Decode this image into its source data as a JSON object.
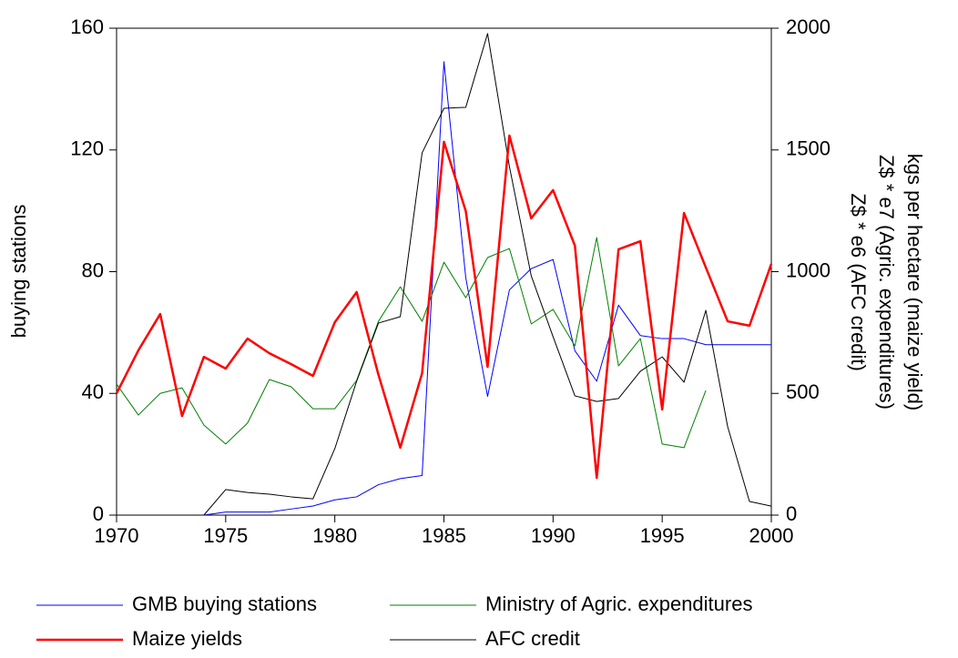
{
  "chart_data": {
    "type": "line",
    "y_label": "buying stations",
    "y2_label": [
      "kgs per hectare (maize yield)",
      "Z$ * e7 (Agric. expenditures)",
      "Z$ * e6 (AFC credit)"
    ],
    "x": [
      1970,
      1971,
      1972,
      1973,
      1974,
      1975,
      1976,
      1977,
      1978,
      1979,
      1980,
      1981,
      1982,
      1983,
      1984,
      1985,
      1986,
      1987,
      1988,
      1989,
      1990,
      1991,
      1992,
      1993,
      1994,
      1995,
      1996,
      1997,
      1998,
      1999,
      2000
    ],
    "xlim": [
      1970,
      2000
    ],
    "xticks": [
      1970,
      1975,
      1980,
      1985,
      1990,
      1995,
      2000
    ],
    "ylim": [
      0,
      160
    ],
    "yticks": [
      0,
      40,
      80,
      120,
      160
    ],
    "y2lim": [
      0,
      2000
    ],
    "y2ticks": [
      0,
      500,
      1000,
      1500,
      2000
    ],
    "series": [
      {
        "name": "GMB buying stations",
        "color": "#0000ff",
        "line_width": 1,
        "axis": "y",
        "values": [
          0,
          0,
          0,
          0,
          0,
          1,
          1,
          1,
          2,
          3,
          5,
          6,
          10,
          12,
          13,
          149,
          78,
          39,
          74,
          81,
          84,
          54,
          44,
          69,
          59,
          58,
          58,
          56,
          56,
          56,
          56
        ]
      },
      {
        "name": "Ministry of Agric. expenditures",
        "color": "#008000",
        "line_width": 1,
        "axis": "y2",
        "values": [
          538,
          411,
          500,
          523,
          370,
          292,
          378,
          557,
          527,
          437,
          437,
          553,
          796,
          938,
          796,
          1039,
          893,
          1058,
          1095,
          785,
          845,
          695,
          1140,
          613,
          725,
          292,
          277,
          512,
          null,
          null,
          null
        ]
      },
      {
        "name": "Maize yields",
        "color": "#ff0000",
        "line_width": 2.5,
        "axis": "y2",
        "values": [
          500,
          677,
          826,
          407,
          650,
          602,
          725,
          665,
          620,
          572,
          792,
          916,
          576,
          277,
          583,
          1533,
          1249,
          609,
          1559,
          1219,
          1335,
          1107,
          153,
          1092,
          1125,
          434,
          1241,
          1017,
          796,
          778,
          1032
        ]
      },
      {
        "name": "AFC credit",
        "color": "#000000",
        "line_width": 1,
        "axis": "y2",
        "values": [
          0,
          0,
          0,
          0,
          0,
          105,
          93,
          86,
          75,
          67,
          273,
          550,
          789,
          815,
          1488,
          1671,
          1675,
          1978,
          1432,
          983,
          733,
          490,
          467,
          479,
          591,
          650,
          546,
          841,
          363,
          56,
          37
        ]
      }
    ]
  }
}
